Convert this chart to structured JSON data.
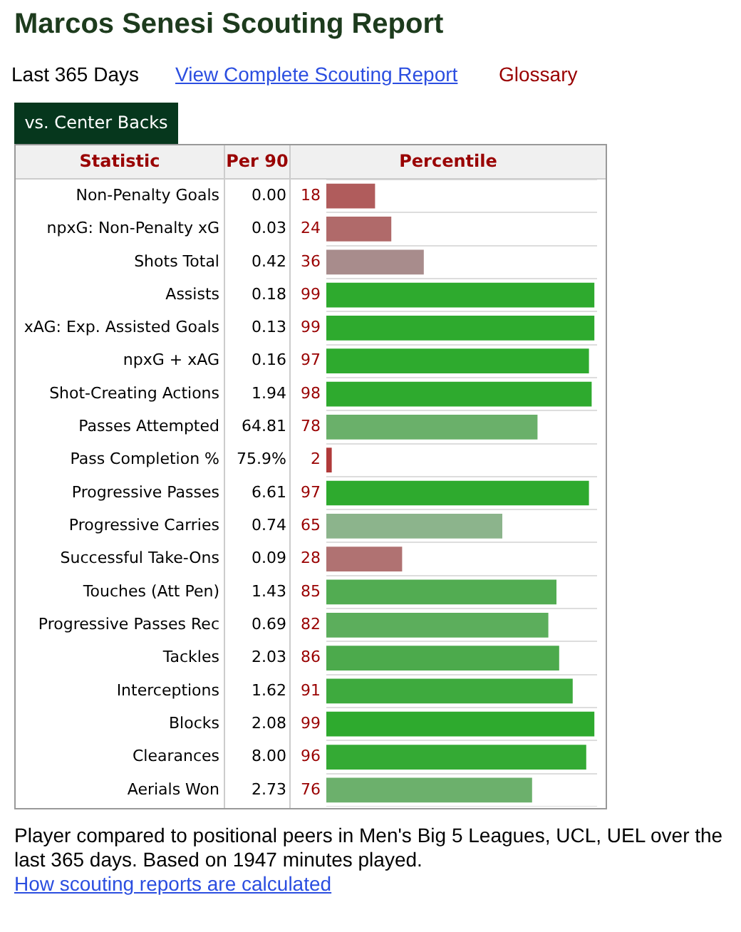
{
  "chart_data": {
    "type": "bar",
    "orientation": "horizontal",
    "title": "Marcos Senesi Scouting Report",
    "categories": [
      "Non-Penalty Goals",
      "npxG: Non-Penalty xG",
      "Shots Total",
      "Assists",
      "xAG: Exp. Assisted Goals",
      "npxG + xAG",
      "Shot-Creating Actions",
      "Passes Attempted",
      "Pass Completion %",
      "Progressive Passes",
      "Progressive Carries",
      "Successful Take-Ons",
      "Touches (Att Pen)",
      "Progressive Passes Rec",
      "Tackles",
      "Interceptions",
      "Blocks",
      "Clearances",
      "Aerials Won"
    ],
    "values": [
      18,
      24,
      36,
      99,
      99,
      97,
      98,
      78,
      2,
      97,
      65,
      28,
      85,
      82,
      86,
      91,
      99,
      96,
      76
    ],
    "colors": [
      "#b05c5c",
      "#b06a6a",
      "#a88c8c",
      "#2eaa2e",
      "#2eaa2e",
      "#2eaa2e",
      "#2eaa2e",
      "#6ab06a",
      "#b03a3a",
      "#2eaa2e",
      "#8cb48c",
      "#b07272",
      "#52ac52",
      "#5cae5c",
      "#4caa4c",
      "#3eaa3e",
      "#2eaa2e",
      "#34aa34",
      "#6cb06c"
    ],
    "xlim": [
      0,
      100
    ],
    "tick_labels": "y",
    "data_labels": true,
    "grid": "y",
    "legend": false,
    "annotations": [
      "Last 365 Days",
      "View Complete Scouting Report",
      "Glossary",
      "vs. Center Backs",
      "Statistic",
      "Per 90",
      "Percentile",
      "0.00",
      "0.03",
      "0.42",
      "0.18",
      "0.13",
      "0.16",
      "1.94",
      "64.81",
      "75.9%",
      "6.61",
      "0.74",
      "0.09",
      "1.43",
      "0.69",
      "2.03",
      "1.62",
      "2.08",
      "8.00",
      "2.73",
      "Player compared to positional peers in Men's Big 5 Leagues, UCL, UEL over the last 365 days. Based on 1947 minutes played.",
      "How scouting reports are calculated"
    ]
  }
}
